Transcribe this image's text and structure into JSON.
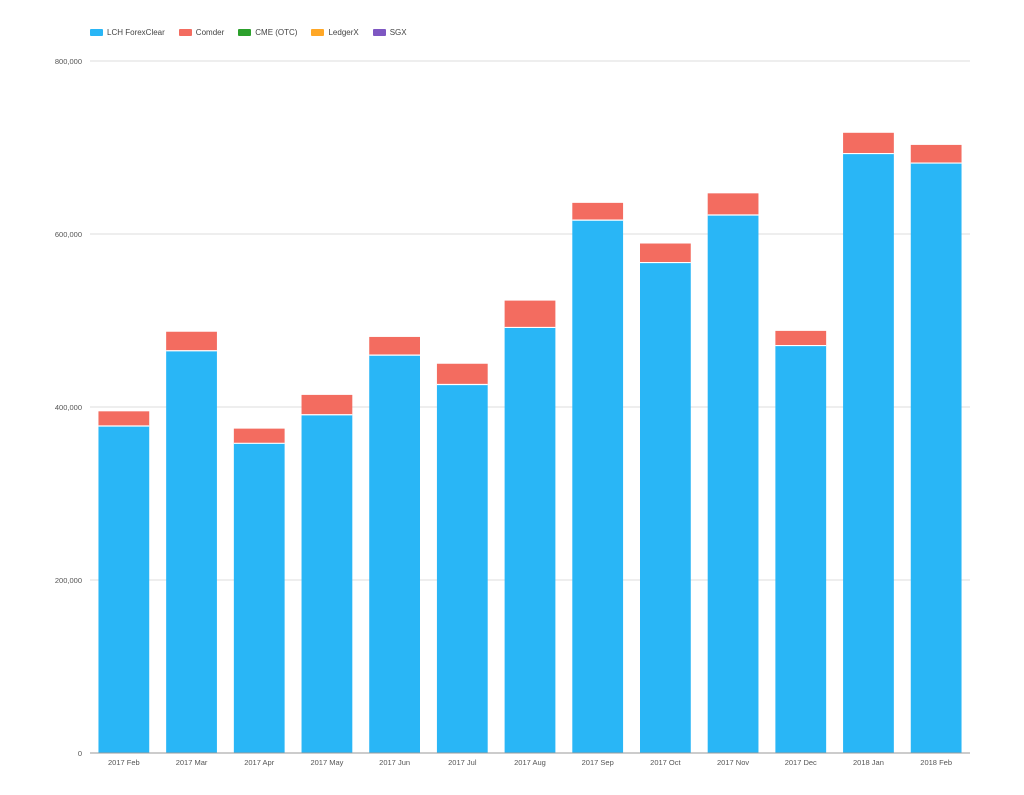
{
  "chart_data": {
    "type": "bar",
    "stacked": true,
    "title": "",
    "xlabel": "",
    "ylabel": "",
    "ylim": [
      0,
      800000
    ],
    "yticks": [
      0,
      200000,
      400000,
      600000,
      800000
    ],
    "ytick_labels": [
      "0",
      "200,000",
      "400,000",
      "600,000",
      "800,000"
    ],
    "grid": true,
    "legend_position": "top-left",
    "categories": [
      "2017 Feb",
      "2017 Mar",
      "2017 Apr",
      "2017 May",
      "2017 Jun",
      "2017 Jul",
      "2017 Aug",
      "2017 Sep",
      "2017 Oct",
      "2017 Nov",
      "2017 Dec",
      "2018 Jan",
      "2018 Feb"
    ],
    "series": [
      {
        "name": "LCH ForexClear",
        "color": "#29b6f6",
        "values": [
          378000,
          465000,
          358000,
          391000,
          460000,
          426000,
          492000,
          616000,
          567000,
          622000,
          471000,
          693000,
          682000
        ]
      },
      {
        "name": "Comder",
        "color": "#f36c60",
        "values": [
          17000,
          22000,
          17000,
          23000,
          21000,
          24000,
          31000,
          20000,
          22000,
          25000,
          17000,
          24000,
          21000
        ]
      },
      {
        "name": "CME (OTC)",
        "color": "#2ca02c",
        "values": [
          0,
          0,
          0,
          0,
          0,
          0,
          0,
          0,
          0,
          0,
          0,
          0,
          0
        ]
      },
      {
        "name": "LedgerX",
        "color": "#ffa726",
        "values": [
          0,
          0,
          0,
          0,
          0,
          0,
          0,
          0,
          0,
          0,
          0,
          0,
          0
        ]
      },
      {
        "name": "SGX",
        "color": "#7e57c2",
        "values": [
          0,
          0,
          0,
          0,
          0,
          0,
          0,
          0,
          0,
          0,
          0,
          0,
          0
        ]
      }
    ]
  }
}
